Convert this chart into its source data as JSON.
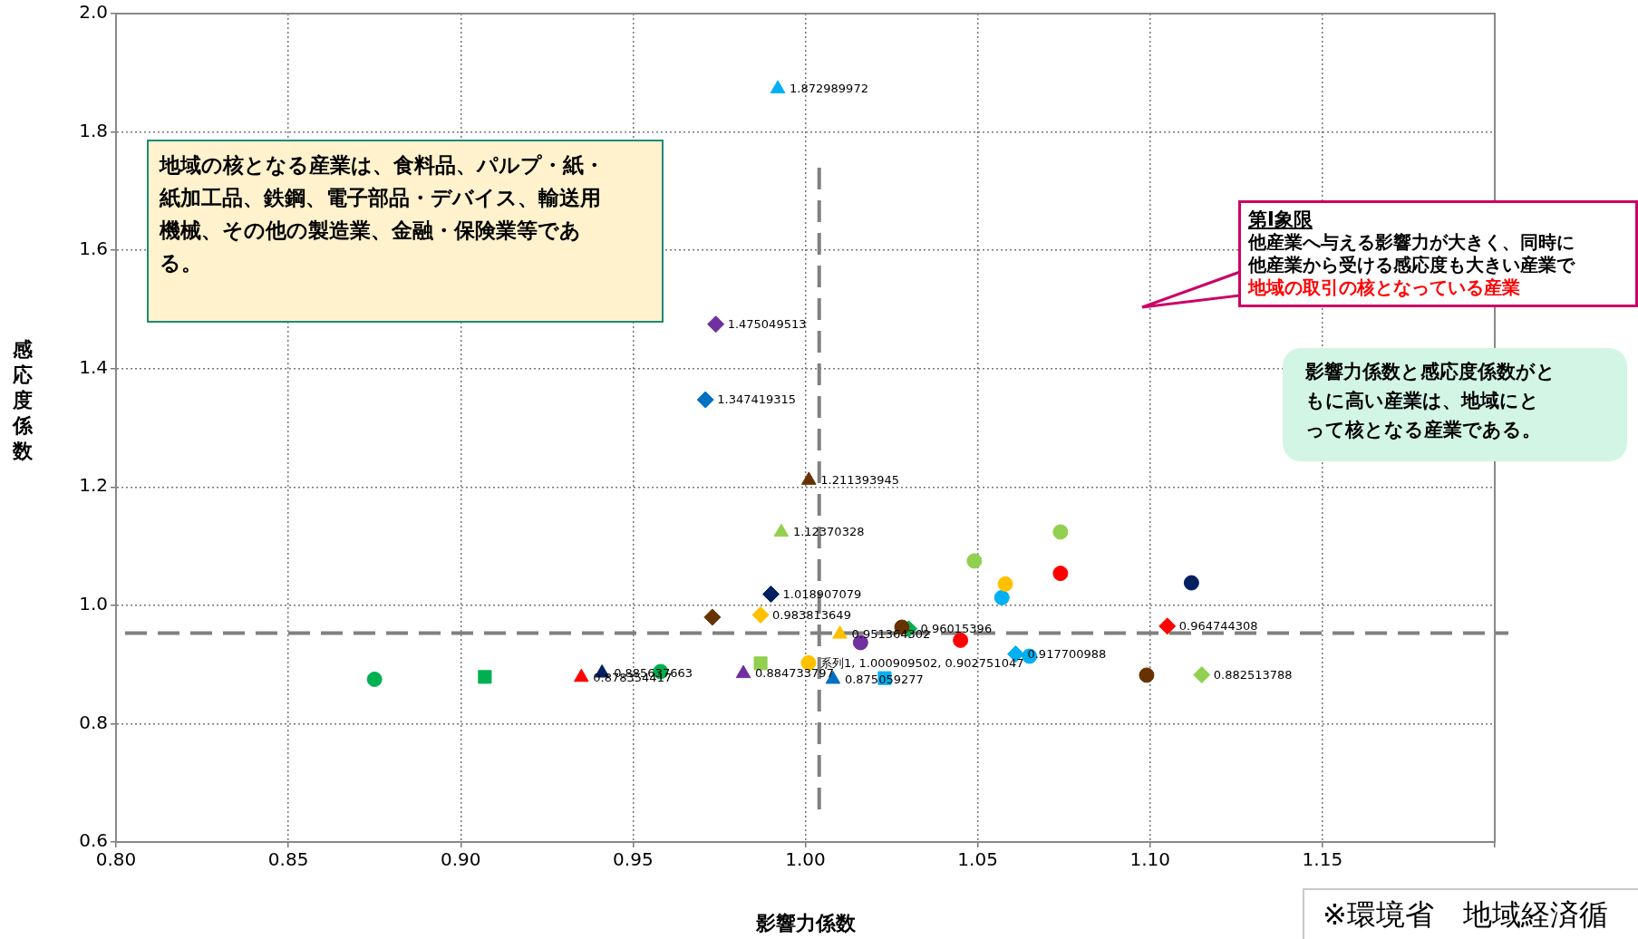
{
  "chart_data": {
    "type": "scatter",
    "xlabel": "影響力係数",
    "ylabel": "感応度係数",
    "xlim": [
      0.8,
      1.2
    ],
    "ylim": [
      0.6,
      2.0
    ],
    "xticks": [
      {
        "value": 0.8,
        "label": "0.80"
      },
      {
        "value": 0.85,
        "label": "0.85"
      },
      {
        "value": 0.9,
        "label": "0.90"
      },
      {
        "value": 0.95,
        "label": "0.95"
      },
      {
        "value": 1.0,
        "label": "1.00"
      },
      {
        "value": 1.05,
        "label": "1.05"
      },
      {
        "value": 1.1,
        "label": "1.10"
      },
      {
        "value": 1.15,
        "label": "1.15"
      },
      {
        "value": 1.2,
        "label": null
      }
    ],
    "yticks": [
      {
        "value": 0.6,
        "label": "0.6"
      },
      {
        "value": 0.8,
        "label": "0.8"
      },
      {
        "value": 1.0,
        "label": "1.0"
      },
      {
        "value": 1.2,
        "label": "1.2"
      },
      {
        "value": 1.4,
        "label": "1.4"
      },
      {
        "value": 1.6,
        "label": "1.6"
      },
      {
        "value": 1.8,
        "label": "1.8"
      },
      {
        "value": 2.0,
        "label": "2.0"
      }
    ],
    "grid": true,
    "legend": false,
    "ref_lines": [
      {
        "axis": "y",
        "value": 0.953,
        "color": "#808080",
        "line_style": "dashed"
      },
      {
        "axis": "x",
        "value": 1.004,
        "color": "#808080",
        "line_style": "dashed"
      }
    ],
    "annotations": [
      "地域の核となる産業は、食料品、パルプ・紙・紙加工品、鉄鋼、電子部品・デバイス、輸送用機械、その他の製造業、金融・保険業等である。",
      "第Ⅰ象限",
      "他産業へ与える影響力が大きく、同時に他産業から受ける感応度も大きい産業で",
      "地域の取引の核となっている産業",
      "影響力係数と感応度係数がともに高い産業は、地域にとって核となる産業である。",
      "※環境省　地域経済循"
    ],
    "series": [
      {
        "x": [
          0.992
        ],
        "values": [
          1.872989972
        ],
        "color": "#00b0f0",
        "marker": "triangle",
        "value_labels": [
          "1.872989972"
        ]
      },
      {
        "x": [
          0.974
        ],
        "values": [
          1.475049513
        ],
        "color": "#7030a0",
        "marker": "diamond",
        "value_labels": [
          "1.475049513"
        ]
      },
      {
        "x": [
          0.971
        ],
        "values": [
          1.347419315
        ],
        "color": "#0070c0",
        "marker": "diamond",
        "value_labels": [
          "1.347419315"
        ]
      },
      {
        "x": [
          1.001
        ],
        "values": [
          1.211393945
        ],
        "color": "#663300",
        "marker": "triangle",
        "value_labels": [
          "1.211393945"
        ]
      },
      {
        "x": [
          0.993
        ],
        "values": [
          1.12370328
        ],
        "color": "#92d050",
        "marker": "triangle",
        "value_labels": [
          "1.12370328"
        ]
      },
      {
        "x": [
          0.99
        ],
        "values": [
          1.018907079
        ],
        "color": "#002060",
        "marker": "diamond",
        "value_labels": [
          "1.018907079"
        ]
      },
      {
        "x": [
          0.973
        ],
        "values": [
          0.98
        ],
        "color": "#663300",
        "marker": "diamond"
      },
      {
        "x": [
          0.987
        ],
        "values": [
          0.983813649
        ],
        "color": "#ffc000",
        "marker": "diamond",
        "value_labels": [
          "0.983813649"
        ]
      },
      {
        "x": [
          1.01
        ],
        "values": [
          0.951364302
        ],
        "color": "#ffc000",
        "marker": "triangle",
        "value_labels": [
          "0.951364302"
        ]
      },
      {
        "x": [
          1.028
        ],
        "values": [
          0.963
        ],
        "color": "#663300",
        "marker": "circle"
      },
      {
        "x": [
          1.03
        ],
        "values": [
          0.96015396
        ],
        "color": "#00b050",
        "marker": "diamond",
        "value_labels": [
          "0.96015396"
        ]
      },
      {
        "x": [
          1.016
        ],
        "values": [
          0.937
        ],
        "color": "#7030a0",
        "marker": "circle"
      },
      {
        "x": [
          1.045
        ],
        "values": [
          0.941
        ],
        "color": "#ff0000",
        "marker": "circle"
      },
      {
        "x": [
          1.061
        ],
        "values": [
          0.917700988
        ],
        "color": "#00b0f0",
        "marker": "diamond",
        "value_labels": [
          "0.917700988"
        ]
      },
      {
        "x": [
          1.065
        ],
        "values": [
          0.914
        ],
        "color": "#00b0f0",
        "marker": "circle"
      },
      {
        "x": [
          1.000909502
        ],
        "values": [
          0.902751047
        ],
        "color": "#ffc000",
        "marker": "circle",
        "value_labels": [
          "系列1, 1.000909502, 0.902751047"
        ]
      },
      {
        "x": [
          0.987
        ],
        "values": [
          0.902
        ],
        "color": "#92d050",
        "marker": "square"
      },
      {
        "x": [
          0.982
        ],
        "values": [
          0.884733797
        ],
        "color": "#7030a0",
        "marker": "triangle",
        "value_labels": [
          "0.884733797"
        ]
      },
      {
        "x": [
          1.008
        ],
        "values": [
          0.875059277
        ],
        "color": "#0070c0",
        "marker": "triangle",
        "value_labels": [
          "0.875059277"
        ]
      },
      {
        "x": [
          1.023
        ],
        "values": [
          0.877
        ],
        "color": "#00b0f0",
        "marker": "square"
      },
      {
        "x": [
          0.958
        ],
        "values": [
          0.888
        ],
        "color": "#00b050",
        "marker": "circle"
      },
      {
        "x": [
          0.941
        ],
        "values": [
          0.885637663
        ],
        "color": "#002060",
        "marker": "triangle",
        "value_labels": [
          "0.885637663"
        ]
      },
      {
        "x": [
          0.935
        ],
        "values": [
          0.878354417
        ],
        "color": "#ff0000",
        "marker": "triangle",
        "value_labels": [
          "0.878354417"
        ]
      },
      {
        "x": [
          0.875
        ],
        "values": [
          0.875
        ],
        "color": "#00b050",
        "marker": "circle"
      },
      {
        "x": [
          0.907
        ],
        "values": [
          0.879
        ],
        "color": "#00b050",
        "marker": "square"
      },
      {
        "x": [
          1.049
        ],
        "values": [
          1.075
        ],
        "color": "#92d050",
        "marker": "circle"
      },
      {
        "x": [
          1.074
        ],
        "values": [
          1.124
        ],
        "color": "#92d050",
        "marker": "circle"
      },
      {
        "x": [
          1.074
        ],
        "values": [
          1.054
        ],
        "color": "#ff0000",
        "marker": "circle"
      },
      {
        "x": [
          1.058
        ],
        "values": [
          1.036
        ],
        "color": "#ffc000",
        "marker": "circle"
      },
      {
        "x": [
          1.057
        ],
        "values": [
          1.013
        ],
        "color": "#00b0f0",
        "marker": "circle"
      },
      {
        "x": [
          1.112
        ],
        "values": [
          1.038
        ],
        "color": "#002060",
        "marker": "circle"
      },
      {
        "x": [
          1.105
        ],
        "values": [
          0.964744308
        ],
        "color": "#ff0000",
        "marker": "diamond",
        "value_labels": [
          "0.964744308"
        ]
      },
      {
        "x": [
          1.115
        ],
        "values": [
          0.882513788
        ],
        "color": "#92d050",
        "marker": "diamond",
        "value_labels": [
          "0.882513788"
        ]
      },
      {
        "x": [
          1.099
        ],
        "values": [
          0.882
        ],
        "color": "#663300",
        "marker": "circle"
      }
    ]
  }
}
